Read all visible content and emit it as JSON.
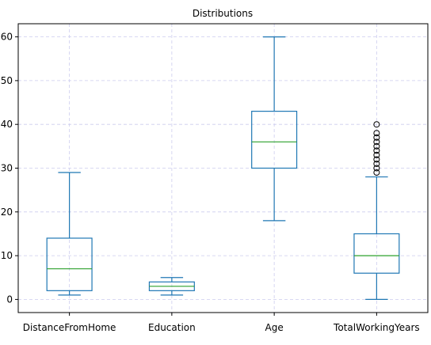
{
  "chart_data": {
    "type": "box",
    "title": "Distributions",
    "xlabel": "",
    "ylabel": "",
    "ylim": [
      -3,
      63
    ],
    "yticks": [
      0,
      10,
      20,
      30,
      40,
      50,
      60
    ],
    "grid": true,
    "categories": [
      "DistanceFromHome",
      "Education",
      "Age",
      "TotalWorkingYears"
    ],
    "series": [
      {
        "category": "DistanceFromHome",
        "whisker_low": 1,
        "q1": 2,
        "median": 7,
        "q3": 14,
        "whisker_high": 29,
        "outliers": []
      },
      {
        "category": "Education",
        "whisker_low": 1,
        "q1": 2,
        "median": 3,
        "q3": 4,
        "whisker_high": 5,
        "outliers": []
      },
      {
        "category": "Age",
        "whisker_low": 18,
        "q1": 30,
        "median": 36,
        "q3": 43,
        "whisker_high": 60,
        "outliers": []
      },
      {
        "category": "TotalWorkingYears",
        "whisker_low": 0,
        "q1": 6,
        "median": 10,
        "q3": 15,
        "whisker_high": 28,
        "outliers": [
          29,
          30,
          31,
          32,
          33,
          34,
          35,
          36,
          37,
          38,
          40
        ]
      }
    ],
    "colors": {
      "box": "#1f77b4",
      "median": "#2ca02c",
      "grid": "#ccccee",
      "axis": "#000000"
    }
  }
}
